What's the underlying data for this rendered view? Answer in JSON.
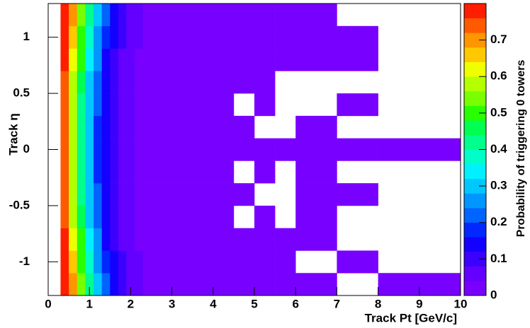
{
  "chart_data": {
    "type": "heatmap",
    "xlabel": "Track Pt [GeV/c]",
    "ylabel": "Track η",
    "zlabel": "Probability of triggering 0 towers",
    "xbins": [
      0.3,
      0.5,
      0.7,
      0.9,
      1.1,
      1.3,
      1.5,
      1.7,
      1.9,
      2.1,
      2.3,
      2.5,
      3.5,
      4.5,
      5,
      5.5,
      6,
      7,
      8,
      10
    ],
    "ybins": [
      -1.3,
      -1.1,
      -0.9,
      -0.7,
      -0.5,
      -0.3,
      -0.1,
      0.1,
      0.3,
      0.5,
      0.7,
      0.9,
      1.1,
      1.3
    ],
    "z": [
      [
        0.78,
        0.7,
        0.55,
        0.42,
        0.3,
        0.2,
        0.14,
        0.1,
        0.07,
        0.05,
        0.04,
        0.02,
        0.01,
        0.01,
        0.01,
        0.01,
        0.01,
        null,
        0.01
      ],
      [
        0.77,
        0.66,
        0.5,
        0.38,
        0.27,
        0.18,
        0.12,
        0.09,
        0.06,
        0.05,
        0.04,
        0.02,
        0.01,
        0.01,
        0.01,
        0.01,
        null,
        0.01,
        null
      ],
      [
        0.76,
        0.63,
        0.48,
        0.35,
        0.24,
        0.16,
        0.11,
        0.08,
        0.06,
        0.04,
        0.03,
        0.02,
        0.01,
        0.01,
        0.01,
        0.01,
        0.01,
        null,
        null
      ],
      [
        0.75,
        0.6,
        0.45,
        0.32,
        0.22,
        0.15,
        0.1,
        0.07,
        0.05,
        0.04,
        0.03,
        0.02,
        0.01,
        null,
        0.01,
        null,
        0.01,
        null,
        null
      ],
      [
        0.74,
        0.58,
        0.43,
        0.3,
        0.2,
        0.14,
        0.09,
        0.07,
        0.05,
        0.04,
        0.03,
        0.02,
        0.01,
        0.01,
        null,
        null,
        0.01,
        0.01,
        null
      ],
      [
        0.73,
        0.56,
        0.41,
        0.29,
        0.19,
        0.13,
        0.09,
        0.06,
        0.05,
        0.03,
        0.03,
        0.02,
        0.01,
        null,
        0.01,
        null,
        0.01,
        null,
        null
      ],
      [
        0.73,
        0.56,
        0.41,
        0.29,
        0.19,
        0.13,
        0.09,
        0.06,
        0.05,
        0.03,
        0.03,
        0.02,
        0.01,
        0.01,
        0.01,
        0.01,
        0.01,
        0.01,
        0.01
      ],
      [
        0.73,
        0.56,
        0.41,
        0.29,
        0.19,
        0.13,
        0.09,
        0.06,
        0.05,
        0.03,
        0.03,
        0.02,
        0.01,
        0.01,
        null,
        null,
        0.01,
        null,
        null
      ],
      [
        0.74,
        0.58,
        0.43,
        0.3,
        0.2,
        0.14,
        0.09,
        0.07,
        0.05,
        0.04,
        0.03,
        0.02,
        0.01,
        null,
        0.01,
        null,
        null,
        0.01,
        null
      ],
      [
        0.75,
        0.6,
        0.45,
        0.32,
        0.22,
        0.15,
        0.1,
        0.07,
        0.05,
        0.04,
        0.03,
        0.02,
        0.01,
        0.01,
        0.01,
        null,
        null,
        null,
        null
      ],
      [
        0.76,
        0.63,
        0.48,
        0.35,
        0.24,
        0.16,
        0.11,
        0.08,
        0.06,
        0.04,
        0.03,
        0.02,
        0.01,
        0.01,
        0.01,
        0.01,
        0.01,
        0.01,
        null
      ],
      [
        0.77,
        0.66,
        0.5,
        0.38,
        0.27,
        0.18,
        0.12,
        0.09,
        0.06,
        0.05,
        0.04,
        0.02,
        0.01,
        0.01,
        0.01,
        0.01,
        0.01,
        0.01,
        null
      ],
      [
        0.78,
        0.7,
        0.55,
        0.42,
        0.3,
        0.2,
        0.14,
        0.1,
        0.07,
        0.05,
        0.04,
        0.02,
        0.01,
        0.01,
        0.01,
        0.01,
        0.01,
        null,
        null
      ]
    ],
    "xlim": [
      0,
      10
    ],
    "xticks": [
      0,
      1,
      2,
      3,
      4,
      5,
      6,
      7,
      8,
      9,
      10
    ],
    "ylim": [
      -1.3,
      1.3
    ],
    "yticks": [
      -1,
      -0.5,
      0,
      0.5,
      1
    ],
    "zlim": [
      0,
      0.8
    ],
    "zticks": [
      0,
      0.1,
      0.2,
      0.3,
      0.4,
      0.5,
      0.6,
      0.7
    ],
    "colors": [
      "#7800ff",
      "#6400ff",
      "#3c00ff",
      "#1400ff",
      "#0028ff",
      "#0064ff",
      "#0096ff",
      "#00c8ff",
      "#00f0ff",
      "#00ffc8",
      "#00ff8c",
      "#00ff50",
      "#28ff00",
      "#78ff00",
      "#b4ff00",
      "#f0ff00",
      "#ffc800",
      "#ff9600",
      "#ff5a00",
      "#ff1e00"
    ]
  }
}
